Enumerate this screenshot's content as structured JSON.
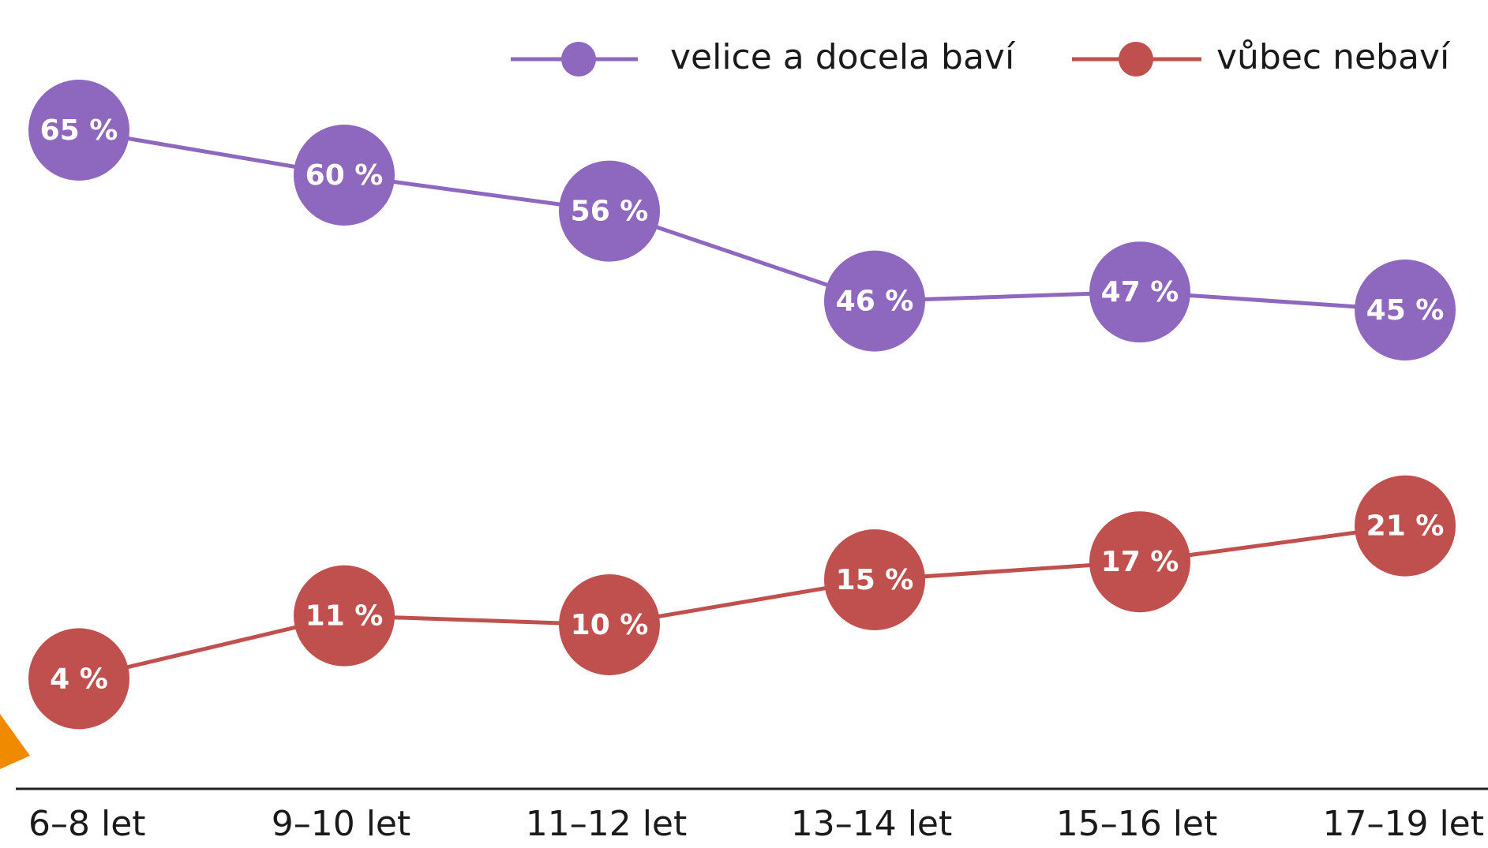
{
  "chart_data": {
    "type": "line",
    "categories": [
      "6–8 let",
      "9–10 let",
      "11–12 let",
      "13–14 let",
      "15–16 let",
      "17–19 let"
    ],
    "series": [
      {
        "name": "velice a docela baví",
        "color": "#8e67be",
        "values": [
          65,
          60,
          56,
          46,
          47,
          45
        ],
        "value_labels": [
          "65 %",
          "60 %",
          "56 %",
          "46 %",
          "47 %",
          "45 %"
        ]
      },
      {
        "name": "vůbec nebaví",
        "color": "#c0504d",
        "values": [
          4,
          11,
          10,
          15,
          17,
          21
        ],
        "value_labels": [
          "4 %",
          "11 %",
          "10 %",
          "15 %",
          "17 %",
          "21 %"
        ]
      }
    ],
    "ylim": [
      0,
      70
    ],
    "legend": "top-right"
  }
}
